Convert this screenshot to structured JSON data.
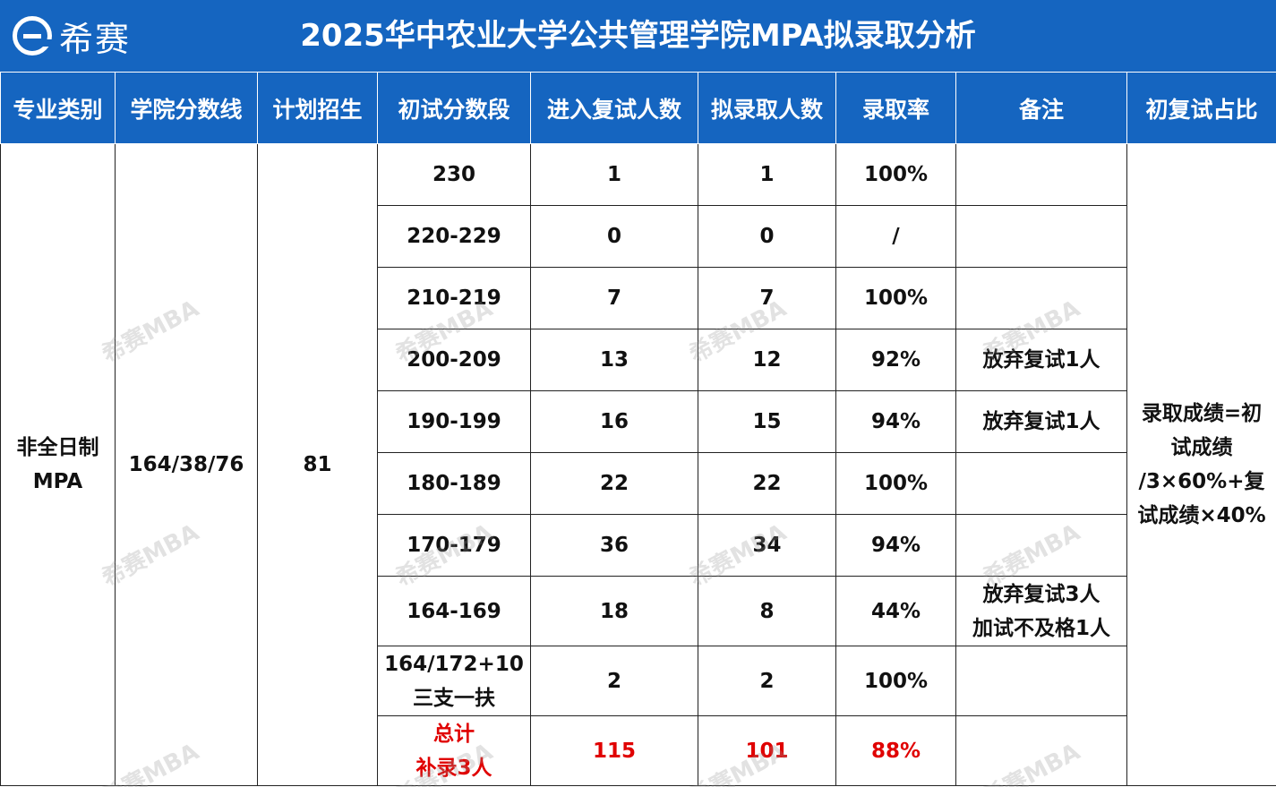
{
  "header": {
    "logo_text": "希赛",
    "title": "2025华中农业大学公共管理学院MPA拟录取分析"
  },
  "table": {
    "columns": [
      "专业类别",
      "学院分数线",
      "计划招生",
      "初试分数段",
      "进入复试人数",
      "拟录取人数",
      "录取率",
      "备注",
      "初复试占比"
    ],
    "category_lines": [
      "非全日制",
      "MPA"
    ],
    "cutoff": "164/38/76",
    "plan": "81",
    "ratio_lines": [
      "录取成绩=初",
      "试成绩",
      "/3×60%+复",
      "试成绩×40%"
    ],
    "rows": [
      {
        "range": [
          "230"
        ],
        "retest": "1",
        "admitted": "1",
        "rate": "100%",
        "note": []
      },
      {
        "range": [
          "220-229"
        ],
        "retest": "0",
        "admitted": "0",
        "rate": "/",
        "note": []
      },
      {
        "range": [
          "210-219"
        ],
        "retest": "7",
        "admitted": "7",
        "rate": "100%",
        "note": []
      },
      {
        "range": [
          "200-209"
        ],
        "retest": "13",
        "admitted": "12",
        "rate": "92%",
        "note": [
          "放弃复试1人"
        ]
      },
      {
        "range": [
          "190-199"
        ],
        "retest": "16",
        "admitted": "15",
        "rate": "94%",
        "note": [
          "放弃复试1人"
        ]
      },
      {
        "range": [
          "180-189"
        ],
        "retest": "22",
        "admitted": "22",
        "rate": "100%",
        "note": []
      },
      {
        "range": [
          "170-179"
        ],
        "retest": "36",
        "admitted": "34",
        "rate": "94%",
        "note": []
      },
      {
        "range": [
          "164-169"
        ],
        "retest": "18",
        "admitted": "8",
        "rate": "44%",
        "note": [
          "放弃复试3人",
          "加试不及格1人"
        ]
      },
      {
        "range": [
          "164/172+10",
          "三支一扶"
        ],
        "retest": "2",
        "admitted": "2",
        "rate": "100%",
        "note": []
      }
    ],
    "total": {
      "label_lines": [
        "总计",
        "补录3人"
      ],
      "retest": "115",
      "admitted": "101",
      "rate": "88%"
    }
  },
  "watermark": "希赛MBA",
  "colors": {
    "header_blue": "#1565c0",
    "total_red": "#e00000"
  }
}
